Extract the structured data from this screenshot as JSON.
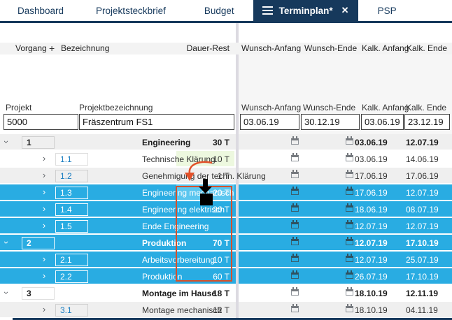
{
  "tabs": [
    {
      "label": "Dashboard",
      "active": false
    },
    {
      "label": "Projektsteckbrief",
      "active": false
    },
    {
      "label": "Budget",
      "active": false
    },
    {
      "label": "Terminplan*",
      "active": true
    },
    {
      "label": "PSP",
      "active": false
    }
  ],
  "grid_header": {
    "vorgang": "Vorgang",
    "add_button": "+",
    "bezeichnung": "Bezeichnung",
    "dauer_rest": "Dauer-Rest",
    "wunsch_anfang": "Wunsch-Anfang",
    "wunsch_ende": "Wunsch-Ende",
    "kalk_anfang": "Kalk. Anfang",
    "kalk_ende": "Kalk. Ende"
  },
  "project": {
    "label_projekt": "Projekt",
    "label_projektbezeichnung": "Projektbezeichnung",
    "label_wunsch_anfang": "Wunsch-Anfang",
    "label_wunsch_ende": "Wunsch-Ende",
    "label_kalk_anfang": "Kalk. Anfang",
    "label_kalk_ende": "Kalk. Ende",
    "nummer": "5000",
    "bezeichnung": "Fräszentrum FS1",
    "wunsch_anfang": "03.06.19",
    "wunsch_ende": "30.12.19",
    "kalk_anfang": "03.06.19",
    "kalk_ende": "23.12.19"
  },
  "rows": [
    {
      "id": "1",
      "name": "Engineering",
      "dauer_rest": "30 T",
      "kalk_anfang": "03.06.19",
      "kalk_ende": "12.07.19",
      "level": 1,
      "chevron": "down",
      "bold": true,
      "selected": false,
      "zebra": "gray",
      "dauer_highlight": ""
    },
    {
      "id": "1.1",
      "name": "Technische Klärung",
      "dauer_rest": "10 T",
      "kalk_anfang": "03.06.19",
      "kalk_ende": "14.06.19",
      "level": 2,
      "chevron": "right",
      "bold": false,
      "selected": false,
      "zebra": "white",
      "dauer_highlight": "green"
    },
    {
      "id": "1.2",
      "name": "Genehmigung der techn. Klärung",
      "dauer_rest": "1 T",
      "kalk_anfang": "17.06.19",
      "kalk_ende": "17.06.19",
      "level": 2,
      "chevron": "right",
      "bold": false,
      "selected": false,
      "zebra": "gray",
      "dauer_highlight": ""
    },
    {
      "id": "1.3",
      "name": "Engineering mechanisch",
      "dauer_rest": "20 T",
      "kalk_anfang": "17.06.19",
      "kalk_ende": "12.07.19",
      "level": 2,
      "chevron": "right",
      "bold": false,
      "selected": true,
      "zebra": "white",
      "dauer_highlight": "drop"
    },
    {
      "id": "1.4",
      "name": "Engineering elektrisch",
      "dauer_rest": "20 T",
      "kalk_anfang": "18.06.19",
      "kalk_ende": "08.07.19",
      "level": 2,
      "chevron": "right",
      "bold": false,
      "selected": true,
      "zebra": "gray",
      "dauer_highlight": ""
    },
    {
      "id": "1.5",
      "name": "Ende Engineering",
      "dauer_rest": "",
      "kalk_anfang": "12.07.19",
      "kalk_ende": "12.07.19",
      "level": 2,
      "chevron": "right",
      "bold": false,
      "selected": true,
      "zebra": "white",
      "dauer_highlight": ""
    },
    {
      "id": "2",
      "name": "Produktion",
      "dauer_rest": "70 T",
      "kalk_anfang": "12.07.19",
      "kalk_ende": "17.10.19",
      "level": 1,
      "chevron": "down",
      "bold": true,
      "selected": true,
      "zebra": "gray",
      "dauer_highlight": ""
    },
    {
      "id": "2.1",
      "name": "Arbeitsvorbereitung",
      "dauer_rest": "10 T",
      "kalk_anfang": "12.07.19",
      "kalk_ende": "25.07.19",
      "level": 2,
      "chevron": "right",
      "bold": false,
      "selected": true,
      "zebra": "white",
      "dauer_highlight": ""
    },
    {
      "id": "2.2",
      "name": "Produktion",
      "dauer_rest": "60 T",
      "kalk_anfang": "26.07.19",
      "kalk_ende": "17.10.19",
      "level": 2,
      "chevron": "right",
      "bold": false,
      "selected": true,
      "zebra": "gray",
      "dauer_highlight": ""
    },
    {
      "id": "3",
      "name": "Montage im Hause",
      "dauer_rest": "18 T",
      "kalk_anfang": "18.10.19",
      "kalk_ende": "12.11.19",
      "level": 1,
      "chevron": "down",
      "bold": true,
      "selected": false,
      "zebra": "white",
      "dauer_highlight": ""
    },
    {
      "id": "3.1",
      "name": "Montage mechanisch",
      "dauer_rest": "12 T",
      "kalk_anfang": "18.10.19",
      "kalk_ende": "04.11.19",
      "level": 2,
      "chevron": "right",
      "bold": false,
      "selected": false,
      "zebra": "gray",
      "dauer_highlight": ""
    }
  ],
  "colors": {
    "navy": "#16395c",
    "selection_cyan": "#29ace2",
    "selection_cyan_light": "#5ac6ef",
    "drag_orange": "#d6502b",
    "green_highlight": "#edf8df",
    "zebra_gray": "#efefef",
    "header_gray": "#f3f3f3",
    "link_blue": "#1b7ec2",
    "separator": "#dcdae1"
  }
}
